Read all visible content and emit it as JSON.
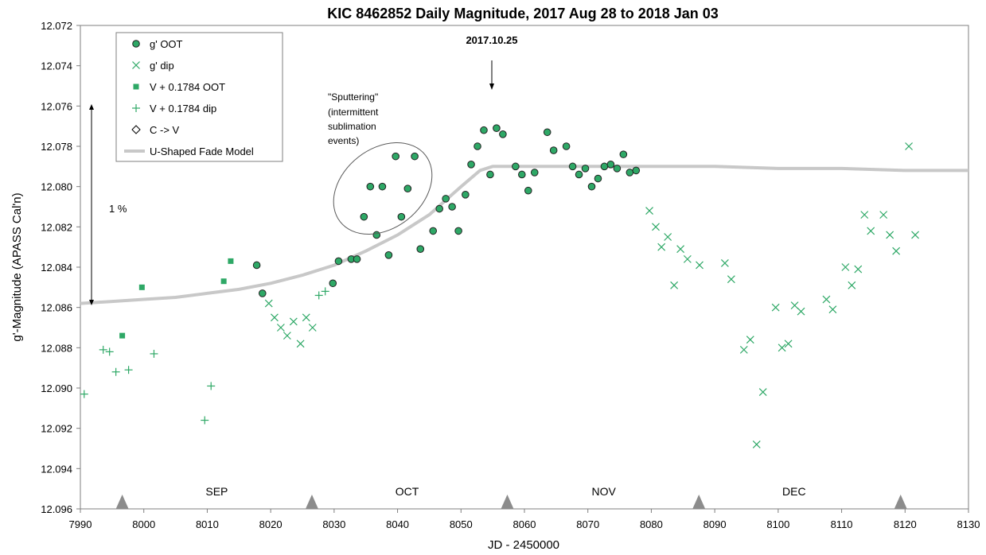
{
  "chart_data": {
    "type": "scatter",
    "title": "KIC 8462852 Daily Magnitude, 2017 Aug 28 to 2018 Jan 03",
    "xlabel": "JD - 2450000",
    "ylabel": "g'-Magnitude (APASS Cal'n)",
    "xlim": [
      7990,
      8130
    ],
    "ylim": [
      12.096,
      12.072
    ],
    "y_inverted": true,
    "x_ticks": [
      "7990",
      "8000",
      "8010",
      "8020",
      "8030",
      "8040",
      "8050",
      "8060",
      "8070",
      "8080",
      "8090",
      "8100",
      "8110",
      "8120",
      "8130"
    ],
    "y_ticks": [
      "12.072",
      "12.074",
      "12.076",
      "12.078",
      "12.080",
      "12.082",
      "12.084",
      "12.086",
      "12.088",
      "12.090",
      "12.092",
      "12.094",
      "12.096"
    ],
    "grid": false,
    "legend_position": "top-left",
    "series": [
      {
        "name": "g' OOT",
        "marker": "circle",
        "color": "#2ea866",
        "points": [
          [
            8017.8,
            12.0839
          ],
          [
            8018.7,
            12.0853
          ],
          [
            8029.8,
            12.0848
          ],
          [
            8030.7,
            12.0837
          ],
          [
            8032.7,
            12.0836
          ],
          [
            8033.6,
            12.0836
          ],
          [
            8034.7,
            12.0815
          ],
          [
            8035.7,
            12.08
          ],
          [
            8036.7,
            12.0824
          ],
          [
            8037.6,
            12.08
          ],
          [
            8038.6,
            12.0834
          ],
          [
            8039.7,
            12.0785
          ],
          [
            8040.6,
            12.0815
          ],
          [
            8041.6,
            12.0801
          ],
          [
            8042.7,
            12.0785
          ],
          [
            8043.6,
            12.0831
          ],
          [
            8045.6,
            12.0822
          ],
          [
            8046.6,
            12.0811
          ],
          [
            8047.6,
            12.0806
          ],
          [
            8048.6,
            12.081
          ],
          [
            8049.6,
            12.0822
          ],
          [
            8050.7,
            12.0804
          ],
          [
            8051.6,
            12.0789
          ],
          [
            8052.6,
            12.078
          ],
          [
            8053.6,
            12.0772
          ],
          [
            8054.6,
            12.0794
          ],
          [
            8055.6,
            12.0771
          ],
          [
            8056.6,
            12.0774
          ],
          [
            8058.6,
            12.079
          ],
          [
            8059.6,
            12.0794
          ],
          [
            8060.6,
            12.0802
          ],
          [
            8061.6,
            12.0793
          ],
          [
            8063.6,
            12.0773
          ],
          [
            8064.6,
            12.0782
          ],
          [
            8066.6,
            12.078
          ],
          [
            8067.6,
            12.079
          ],
          [
            8068.6,
            12.0794
          ],
          [
            8069.6,
            12.0791
          ],
          [
            8070.6,
            12.08
          ],
          [
            8071.6,
            12.0796
          ],
          [
            8072.6,
            12.079
          ],
          [
            8073.6,
            12.0789
          ],
          [
            8074.6,
            12.0791
          ],
          [
            8075.6,
            12.0784
          ],
          [
            8076.6,
            12.0793
          ],
          [
            8077.6,
            12.0792
          ]
        ]
      },
      {
        "name": "g' dip",
        "marker": "x",
        "color": "#2ea866",
        "points": [
          [
            8019.7,
            12.0858
          ],
          [
            8020.6,
            12.0865
          ],
          [
            8021.6,
            12.087
          ],
          [
            8022.6,
            12.0874
          ],
          [
            8023.6,
            12.0867
          ],
          [
            8024.7,
            12.0878
          ],
          [
            8025.6,
            12.0865
          ],
          [
            8026.6,
            12.087
          ],
          [
            8079.7,
            12.0812
          ],
          [
            8080.7,
            12.082
          ],
          [
            8081.6,
            12.083
          ],
          [
            8082.6,
            12.0825
          ],
          [
            8083.6,
            12.0849
          ],
          [
            8084.6,
            12.0831
          ],
          [
            8085.7,
            12.0836
          ],
          [
            8087.6,
            12.0839
          ],
          [
            8091.6,
            12.0838
          ],
          [
            8092.6,
            12.0846
          ],
          [
            8094.6,
            12.0881
          ],
          [
            8095.6,
            12.0876
          ],
          [
            8096.6,
            12.0928
          ],
          [
            8097.6,
            12.0902
          ],
          [
            8099.6,
            12.086
          ],
          [
            8100.6,
            12.088
          ],
          [
            8101.6,
            12.0878
          ],
          [
            8102.6,
            12.0859
          ],
          [
            8103.6,
            12.0862
          ],
          [
            8107.6,
            12.0856
          ],
          [
            8108.6,
            12.0861
          ],
          [
            8110.6,
            12.084
          ],
          [
            8111.6,
            12.0849
          ],
          [
            8112.6,
            12.0841
          ],
          [
            8113.6,
            12.0814
          ],
          [
            8114.6,
            12.0822
          ],
          [
            8116.6,
            12.0814
          ],
          [
            8117.6,
            12.0824
          ],
          [
            8118.6,
            12.0832
          ],
          [
            8120.6,
            12.078
          ],
          [
            8121.6,
            12.0824
          ]
        ]
      },
      {
        "name": "V + 0.1784 OOT",
        "marker": "square",
        "color": "#2ea866",
        "points": [
          [
            7996.6,
            12.0874
          ],
          [
            7999.7,
            12.085
          ],
          [
            8012.6,
            12.0847
          ],
          [
            8013.7,
            12.0837
          ]
        ]
      },
      {
        "name": "V + 0.1784 dip",
        "marker": "plus",
        "color": "#2ea866",
        "points": [
          [
            7990.6,
            12.0903
          ],
          [
            7993.6,
            12.0881
          ],
          [
            7994.6,
            12.0882
          ],
          [
            7995.6,
            12.0892
          ],
          [
            7997.6,
            12.0891
          ],
          [
            8001.6,
            12.0883
          ],
          [
            8009.6,
            12.0916
          ],
          [
            8010.6,
            12.0899
          ],
          [
            8027.6,
            12.0854
          ],
          [
            8028.6,
            12.0852
          ]
        ]
      },
      {
        "name": "C -> V",
        "marker": "diamond",
        "color": "#000000",
        "points": []
      },
      {
        "name": "U-Shaped Fade Model",
        "type": "line",
        "color": "#c8c8c8",
        "points": [
          [
            7990,
            12.0858
          ],
          [
            7995,
            12.0857
          ],
          [
            8000,
            12.0856
          ],
          [
            8005,
            12.0855
          ],
          [
            8010,
            12.0853
          ],
          [
            8015,
            12.0851
          ],
          [
            8020,
            12.0848
          ],
          [
            8025,
            12.0844
          ],
          [
            8030,
            12.0839
          ],
          [
            8035,
            12.0832
          ],
          [
            8040,
            12.0824
          ],
          [
            8045,
            12.0814
          ],
          [
            8050,
            12.08
          ],
          [
            8053,
            12.0792
          ],
          [
            8055,
            12.079
          ],
          [
            8060,
            12.079
          ],
          [
            8070,
            12.079
          ],
          [
            8080,
            12.079
          ],
          [
            8090,
            12.079
          ],
          [
            8100,
            12.0791
          ],
          [
            8110,
            12.0791
          ],
          [
            8120,
            12.0792
          ],
          [
            8130,
            12.0792
          ]
        ]
      }
    ],
    "month_labels": [
      {
        "text": "SEP",
        "x": 8011.5
      },
      {
        "text": "OCT",
        "x": 8041.5
      },
      {
        "text": "NOV",
        "x": 8072.5
      },
      {
        "text": "DEC",
        "x": 8102.5
      }
    ],
    "month_markers": [
      7996.6,
      8026.5,
      8057.3,
      8087.5,
      8119.3
    ],
    "annotations": {
      "date_label": "2017.10.25",
      "date_arrow_x": 8055.3,
      "percent_label": "1 %",
      "sputtering_lines": [
        "\"Sputtering\"",
        "(intermittent",
        "sublimation",
        "events)"
      ]
    }
  }
}
